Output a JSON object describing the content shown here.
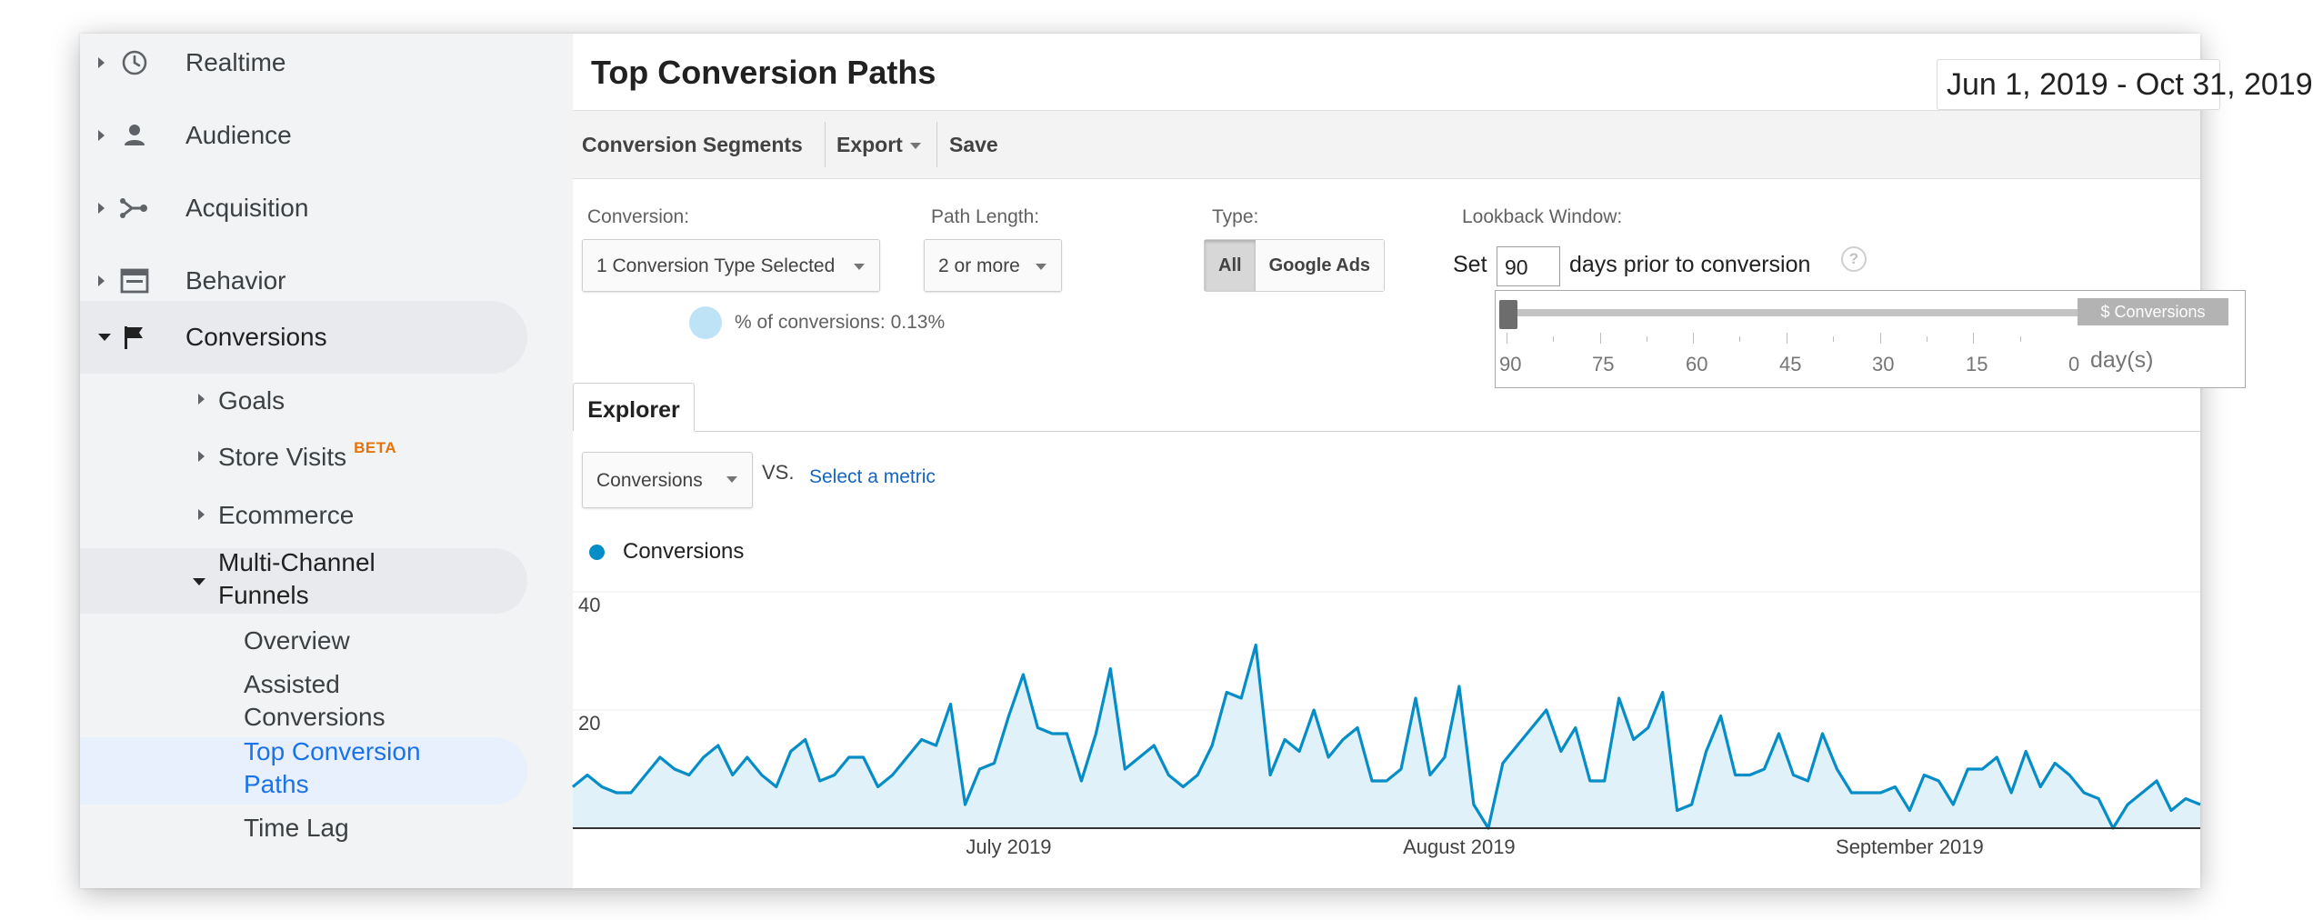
{
  "sidebar": {
    "items": [
      {
        "label": "Realtime",
        "icon": "clock-icon"
      },
      {
        "label": "Audience",
        "icon": "person-icon"
      },
      {
        "label": "Acquisition",
        "icon": "acquisition-icon"
      },
      {
        "label": "Behavior",
        "icon": "behavior-icon"
      },
      {
        "label": "Conversions",
        "icon": "flag-icon"
      }
    ],
    "conversions_children": {
      "goals": "Goals",
      "store_visits": "Store Visits",
      "store_visits_badge": "BETA",
      "ecommerce": "Ecommerce",
      "mcf_line1": "Multi-Channel",
      "mcf_line2": "Funnels"
    },
    "mcf_children": {
      "overview": "Overview",
      "assisted_line1": "Assisted",
      "assisted_line2": "Conversions",
      "tcp_line1": "Top Conversion",
      "tcp_line2": "Paths",
      "time_lag": "Time Lag"
    }
  },
  "header": {
    "title": "Top Conversion Paths",
    "date_range": "Jun 1, 2019 - Oct 31, 2019"
  },
  "toolbar": {
    "segments": "Conversion Segments",
    "export": "Export",
    "save": "Save"
  },
  "controls": {
    "conversion_label": "Conversion:",
    "conversion_value": "1 Conversion Type Selected",
    "conversion_pct": "% of conversions: 0.13%",
    "path_length_label": "Path Length:",
    "path_length_value": "2 or more",
    "type_label": "Type:",
    "type_all": "All",
    "type_google_ads": "Google Ads",
    "lookback_label": "Lookback Window:",
    "set_label": "Set",
    "days_value": "90",
    "days_suffix": "days prior to conversion",
    "help": "?",
    "slider_flag": "$ Conversions",
    "slider_ticks": [
      "90",
      "75",
      "60",
      "45",
      "30",
      "15",
      "0"
    ],
    "slider_unit": "day(s)"
  },
  "explorer": {
    "tab": "Explorer",
    "metric": "Conversions",
    "vs": "VS.",
    "select_metric": "Select a metric"
  },
  "chart_data": {
    "type": "area",
    "series": [
      {
        "name": "Conversions",
        "values": [
          7,
          9,
          7,
          6,
          6,
          9,
          12,
          10,
          9,
          12,
          14,
          9,
          12,
          9,
          7,
          13,
          15,
          8,
          9,
          12,
          12,
          7,
          9,
          12,
          15,
          14,
          21,
          4,
          10,
          11,
          19,
          26,
          17,
          16,
          16,
          8,
          16,
          27,
          10,
          12,
          14,
          9,
          7,
          9,
          14,
          23,
          22,
          31,
          9,
          15,
          13,
          20,
          12,
          15,
          17,
          8,
          8,
          10,
          22,
          9,
          12,
          24,
          4,
          0,
          11,
          14,
          17,
          20,
          13,
          17,
          8,
          8,
          22,
          15,
          17,
          23,
          3,
          4,
          13,
          19,
          9,
          9,
          10,
          16,
          9,
          8,
          16,
          10,
          6,
          6,
          6,
          7,
          3,
          9,
          8,
          4,
          10,
          10,
          12,
          6,
          13,
          7,
          11,
          9,
          6,
          5,
          0,
          4,
          6,
          8,
          3,
          5,
          4
        ]
      }
    ],
    "ylim": [
      0,
      40
    ],
    "yticks": [
      "40",
      "20"
    ],
    "xticks": [
      "July 2019",
      "August 2019",
      "September 2019"
    ],
    "color": "#058dc7",
    "fill_color": "#e1f1fa",
    "grid": true,
    "legend": "top-left"
  },
  "colors": {
    "sidebar_bg": "#f1f3f4",
    "active_item_bg": "#e8f0fe",
    "active_item_text": "#1a73e8",
    "badge": "#e8710a",
    "link": "#1565c0"
  }
}
